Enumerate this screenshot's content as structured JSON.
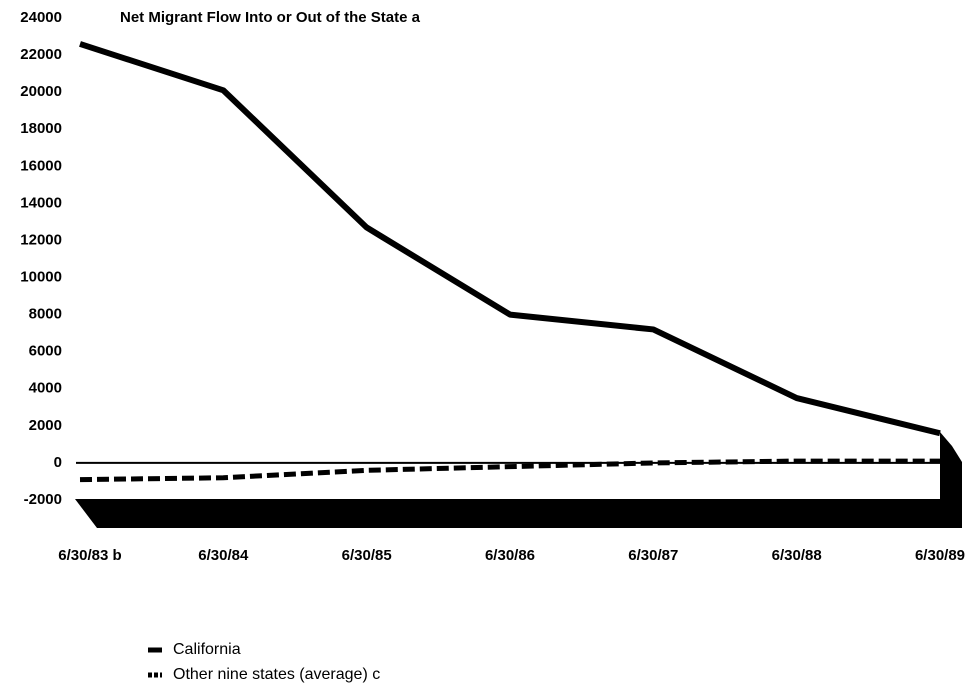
{
  "chart_data": {
    "type": "line",
    "title": "Net Migrant Flow Into or Out of the State a",
    "categories": [
      "6/30/83 b",
      "6/30/84",
      "6/30/85",
      "6/30/86",
      "6/30/87",
      "6/30/88",
      "6/30/89"
    ],
    "series": [
      {
        "name": "California",
        "color": "#000000",
        "dashed": false,
        "values": [
          22600,
          20100,
          12700,
          8000,
          7200,
          3500,
          1600
        ]
      },
      {
        "name": "Other nine states (average) c",
        "color": "#000000",
        "dashed": true,
        "values": [
          -900,
          -800,
          -400,
          -200,
          0,
          100,
          100
        ]
      }
    ],
    "ylim": [
      -2000,
      24000
    ],
    "yticks": [
      24000,
      22000,
      20000,
      18000,
      16000,
      14000,
      12000,
      10000,
      8000,
      6000,
      4000,
      2000,
      0,
      -2000
    ]
  }
}
